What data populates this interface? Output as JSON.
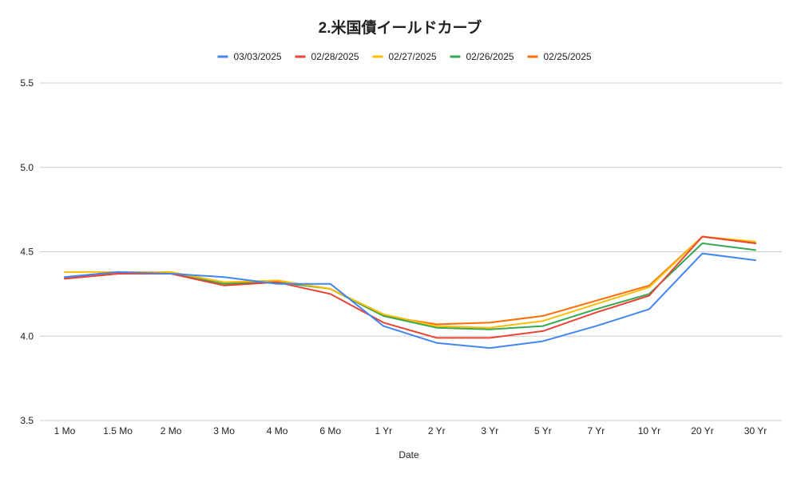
{
  "chart_data": {
    "type": "line",
    "title": "2.米国債イールドカーブ",
    "xlabel": "Date",
    "ylabel": "",
    "categories": [
      "1 Mo",
      "1.5 Mo",
      "2 Mo",
      "3 Mo",
      "4 Mo",
      "6 Mo",
      "1 Yr",
      "2 Yr",
      "3 Yr",
      "5 Yr",
      "7 Yr",
      "10 Yr",
      "20 Yr",
      "30 Yr"
    ],
    "yticks": [
      "3.5",
      "4.0",
      "4.5",
      "5.0",
      "5.5"
    ],
    "ylim": [
      3.5,
      5.5
    ],
    "grid": true,
    "legend": "top",
    "series": [
      {
        "name": "03/03/2025",
        "color": "#4285f4",
        "values": [
          4.35,
          4.38,
          4.37,
          4.35,
          4.31,
          4.31,
          4.06,
          3.96,
          3.93,
          3.97,
          4.06,
          4.16,
          4.49,
          4.45
        ]
      },
      {
        "name": "02/28/2025",
        "color": "#ea4335",
        "values": [
          4.34,
          4.37,
          4.37,
          4.3,
          4.32,
          4.25,
          4.08,
          3.99,
          3.99,
          4.03,
          4.14,
          4.24,
          4.59,
          4.55
        ]
      },
      {
        "name": "02/27/2025",
        "color": "#fbbc04",
        "values": [
          4.38,
          4.38,
          4.38,
          4.32,
          4.33,
          4.28,
          4.13,
          4.06,
          4.05,
          4.09,
          4.19,
          4.29,
          4.59,
          4.56
        ]
      },
      {
        "name": "02/26/2025",
        "color": "#34a853",
        "values": [
          4.35,
          4.38,
          4.37,
          4.31,
          4.32,
          4.28,
          4.12,
          4.05,
          4.04,
          4.06,
          4.16,
          4.25,
          4.55,
          4.51
        ]
      },
      {
        "name": "02/25/2025",
        "color": "#ff6d01",
        "values": [
          4.34,
          4.37,
          4.37,
          4.31,
          4.33,
          4.28,
          4.12,
          4.07,
          4.08,
          4.12,
          4.21,
          4.3,
          4.59,
          4.55
        ]
      }
    ]
  }
}
